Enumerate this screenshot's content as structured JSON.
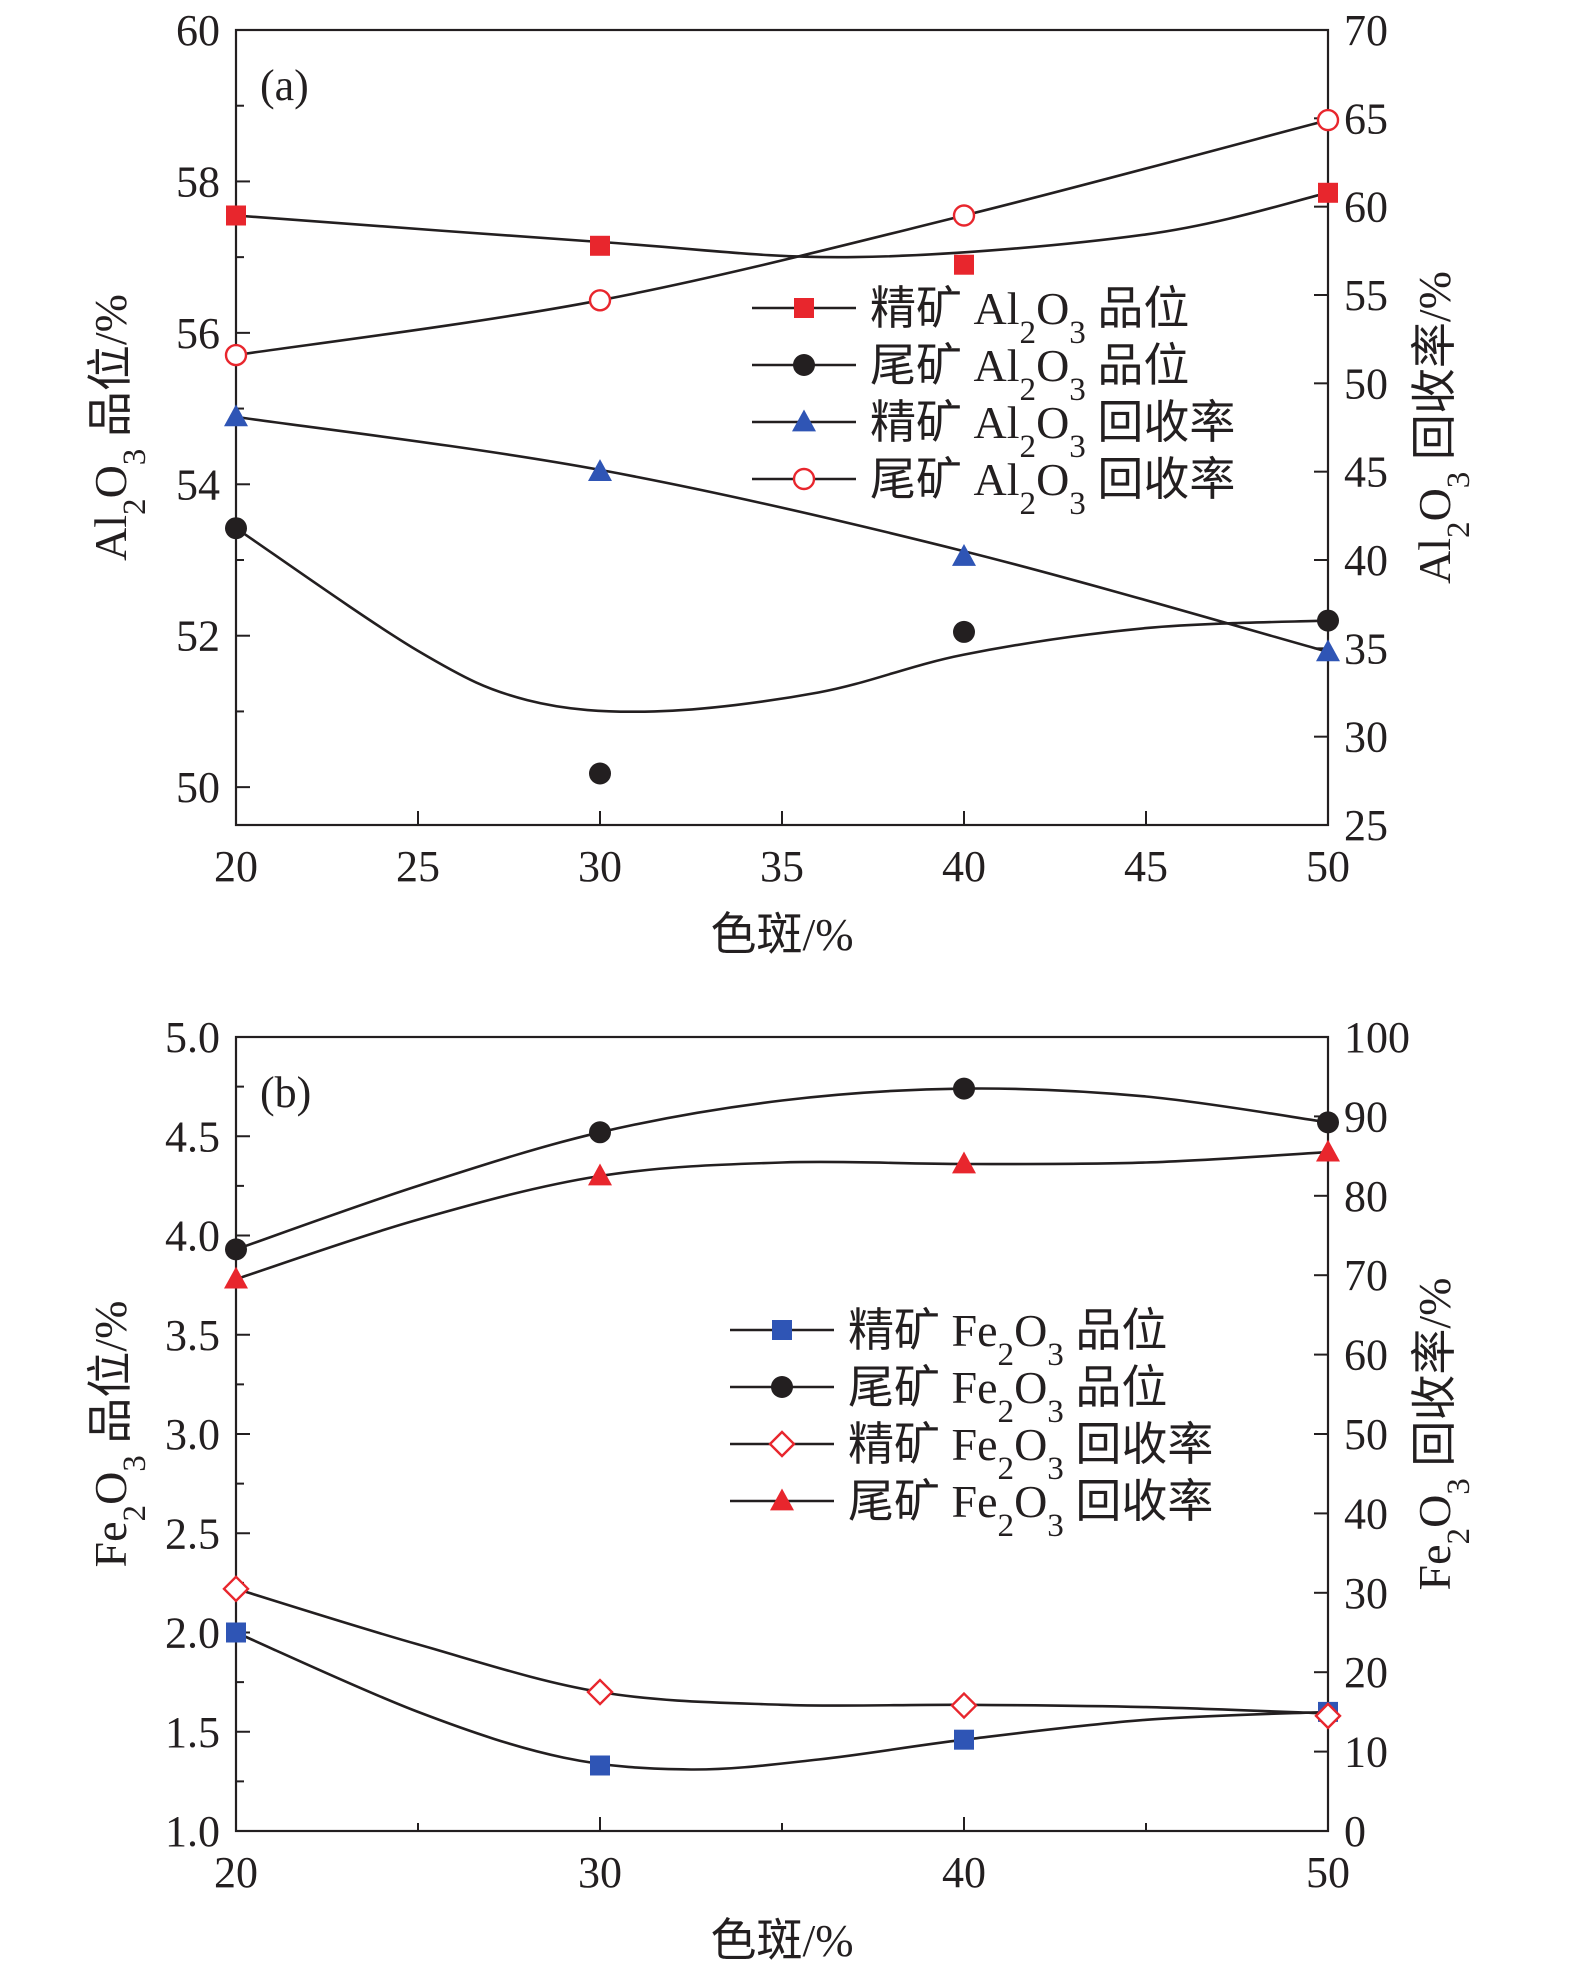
{
  "chart_data": [
    {
      "type": "line",
      "panel_label": "(a)",
      "xlabel": "色斑/%",
      "ylabel_left": {
        "chem": [
          [
            "Al",
            ""
          ],
          [
            "2",
            "sub"
          ],
          [
            "O",
            ""
          ],
          [
            "3",
            "sub"
          ]
        ],
        "suffix": " 品位/%"
      },
      "ylabel_right": {
        "chem": [
          [
            "Al",
            ""
          ],
          [
            "2",
            "sub"
          ],
          [
            "O",
            ""
          ],
          [
            "3",
            "sub"
          ]
        ],
        "suffix": " 回收率/%"
      },
      "xlim": [
        20,
        50
      ],
      "xticks": [
        20,
        25,
        30,
        35,
        40,
        45,
        50
      ],
      "ylim_left": [
        49.5,
        60
      ],
      "yticks_left": [
        50,
        52,
        54,
        56,
        58,
        60
      ],
      "ylim_right": [
        25,
        70
      ],
      "yticks_right": [
        25,
        30,
        35,
        40,
        45,
        50,
        55,
        60,
        65,
        70
      ],
      "legend_position": "right-middle",
      "series": [
        {
          "name": "精矿 Al2O3 品位",
          "label_prefix": "精矿 ",
          "chem": [
            [
              "Al",
              ""
            ],
            [
              "2",
              "sub"
            ],
            [
              "O",
              ""
            ],
            [
              "3",
              "sub"
            ]
          ],
          "label_suffix": " 品位",
          "axis": "left",
          "marker": "square",
          "color": "#e8262d",
          "x": [
            20,
            30,
            40,
            50
          ],
          "y": [
            57.55,
            57.15,
            56.9,
            57.85
          ],
          "curve": [
            [
              20,
              57.55
            ],
            [
              30,
              57.2
            ],
            [
              37,
              57.0
            ],
            [
              45,
              57.3
            ],
            [
              50,
              57.85
            ]
          ]
        },
        {
          "name": "尾矿 Al2O3 品位",
          "label_prefix": "尾矿 ",
          "chem": [
            [
              "Al",
              ""
            ],
            [
              "2",
              "sub"
            ],
            [
              "O",
              ""
            ],
            [
              "3",
              "sub"
            ]
          ],
          "label_suffix": " 品位",
          "axis": "left",
          "marker": "circle",
          "color": "#231f20",
          "x": [
            20,
            30,
            40,
            50
          ],
          "y": [
            53.42,
            50.18,
            52.05,
            52.2
          ],
          "curve": [
            [
              20,
              53.42
            ],
            [
              25,
              51.8
            ],
            [
              28,
              51.15
            ],
            [
              31.5,
              51.0
            ],
            [
              36,
              51.25
            ],
            [
              40,
              51.75
            ],
            [
              45,
              52.1
            ],
            [
              50,
              52.2
            ]
          ]
        },
        {
          "name": "精矿 Al2O3 回收率",
          "label_prefix": "精矿 ",
          "chem": [
            [
              "Al",
              ""
            ],
            [
              "2",
              "sub"
            ],
            [
              "O",
              ""
            ],
            [
              "3",
              "sub"
            ]
          ],
          "label_suffix": " 回收率",
          "axis": "right",
          "marker": "triangle",
          "color": "#2f55b5",
          "x": [
            20,
            30,
            40,
            50
          ],
          "y": [
            48.1,
            45.0,
            40.2,
            34.8
          ],
          "curve": [
            [
              20,
              48.1
            ],
            [
              30,
              45.1
            ],
            [
              40,
              40.5
            ],
            [
              50,
              34.8
            ]
          ]
        },
        {
          "name": "尾矿 Al2O3 回收率",
          "label_prefix": "尾矿 ",
          "chem": [
            [
              "Al",
              ""
            ],
            [
              "2",
              "sub"
            ],
            [
              "O",
              ""
            ],
            [
              "3",
              "sub"
            ]
          ],
          "label_suffix": " 回收率",
          "axis": "right",
          "marker": "open-circle",
          "color": "#e8262d",
          "x": [
            20,
            30,
            40,
            50
          ],
          "y": [
            51.6,
            54.7,
            59.5,
            64.9
          ],
          "curve": [
            [
              20,
              51.6
            ],
            [
              30,
              54.7
            ],
            [
              40,
              59.5
            ],
            [
              50,
              64.9
            ]
          ]
        }
      ]
    },
    {
      "type": "line",
      "panel_label": "(b)",
      "xlabel": "色斑/%",
      "ylabel_left": {
        "chem": [
          [
            "Fe",
            ""
          ],
          [
            "2",
            "sub"
          ],
          [
            "O",
            ""
          ],
          [
            "3",
            "sub"
          ]
        ],
        "suffix": " 品位/%"
      },
      "ylabel_right": {
        "chem": [
          [
            "Fe",
            ""
          ],
          [
            "2",
            "sub"
          ],
          [
            "O",
            ""
          ],
          [
            "3",
            "sub"
          ]
        ],
        "suffix": " 回收率/%"
      },
      "xlim": [
        20,
        50
      ],
      "xticks": [
        20,
        30,
        40,
        50
      ],
      "ylim_left": [
        1.0,
        5.0
      ],
      "yticks_left": [
        "1.0",
        "1.5",
        "2.0",
        "2.5",
        "3.0",
        "3.5",
        "4.0",
        "4.5",
        "5.0"
      ],
      "ylim_right": [
        0,
        100
      ],
      "yticks_right": [
        0,
        10,
        20,
        30,
        40,
        50,
        60,
        70,
        80,
        90,
        100
      ],
      "legend_position": "right-middle",
      "series": [
        {
          "name": "精矿 Fe2O3 品位",
          "label_prefix": "精矿 ",
          "chem": [
            [
              "Fe",
              ""
            ],
            [
              "2",
              "sub"
            ],
            [
              "O",
              ""
            ],
            [
              "3",
              "sub"
            ]
          ],
          "label_suffix": " 品位",
          "axis": "left",
          "marker": "square",
          "color": "#2f55b5",
          "x": [
            20,
            30,
            40,
            50
          ],
          "y": [
            2.0,
            1.33,
            1.46,
            1.6
          ],
          "curve": [
            [
              20,
              2.0
            ],
            [
              25,
              1.6
            ],
            [
              29,
              1.37
            ],
            [
              32.5,
              1.31
            ],
            [
              36,
              1.36
            ],
            [
              40,
              1.46
            ],
            [
              45,
              1.56
            ],
            [
              50,
              1.6
            ]
          ]
        },
        {
          "name": "尾矿 Fe2O3 品位",
          "label_prefix": "尾矿 ",
          "chem": [
            [
              "Fe",
              ""
            ],
            [
              "2",
              "sub"
            ],
            [
              "O",
              ""
            ],
            [
              "3",
              "sub"
            ]
          ],
          "label_suffix": " 品位",
          "axis": "left",
          "marker": "circle",
          "color": "#231f20",
          "x": [
            20,
            30,
            40,
            50
          ],
          "y": [
            3.93,
            4.52,
            4.74,
            4.57
          ],
          "curve": [
            [
              20,
              3.93
            ],
            [
              25,
              4.25
            ],
            [
              30,
              4.52
            ],
            [
              35,
              4.68
            ],
            [
              40,
              4.74
            ],
            [
              45,
              4.7
            ],
            [
              50,
              4.57
            ]
          ]
        },
        {
          "name": "精矿 Fe2O3 回收率",
          "label_prefix": "精矿 ",
          "chem": [
            [
              "Fe",
              ""
            ],
            [
              "2",
              "sub"
            ],
            [
              "O",
              ""
            ],
            [
              "3",
              "sub"
            ]
          ],
          "label_suffix": " 回收率",
          "axis": "right",
          "marker": "open-diamond",
          "color": "#e8262d",
          "x": [
            20,
            30,
            40,
            50
          ],
          "y": [
            30.5,
            17.5,
            15.8,
            14.5
          ],
          "curve": [
            [
              20,
              30.5
            ],
            [
              25,
              23.5
            ],
            [
              30,
              17.5
            ],
            [
              35,
              15.9
            ],
            [
              40,
              15.9
            ],
            [
              45,
              15.6
            ],
            [
              50,
              14.8
            ]
          ]
        },
        {
          "name": "尾矿 Fe2O3 回收率",
          "label_prefix": "尾矿 ",
          "chem": [
            [
              "Fe",
              ""
            ],
            [
              "2",
              "sub"
            ],
            [
              "O",
              ""
            ],
            [
              "3",
              "sub"
            ]
          ],
          "label_suffix": " 回收率",
          "axis": "right",
          "marker": "triangle",
          "color": "#e8262d",
          "x": [
            20,
            30,
            40,
            50
          ],
          "y": [
            69.5,
            82.5,
            84.0,
            85.5
          ],
          "curve": [
            [
              20,
              69.5
            ],
            [
              25,
              77.0
            ],
            [
              30,
              82.5
            ],
            [
              35,
              84.2
            ],
            [
              40,
              84.0
            ],
            [
              45,
              84.2
            ],
            [
              50,
              85.5
            ]
          ]
        }
      ]
    }
  ]
}
